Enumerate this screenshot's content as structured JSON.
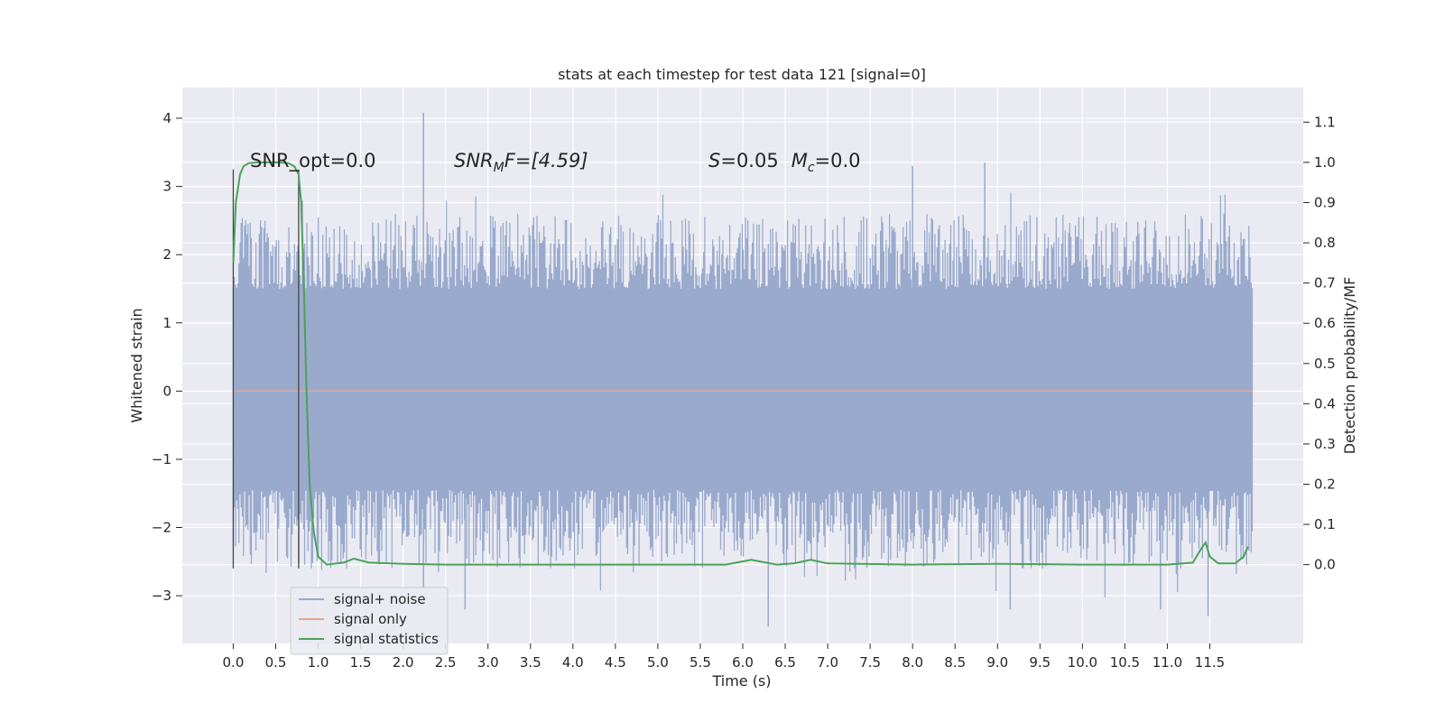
{
  "chart_data": {
    "type": "line",
    "title": "stats at each timestep for test data 121 [signal=0]",
    "xlabel": "Time (s)",
    "ylabel_left": "Whitened strain",
    "ylabel_right": "Detection probability/MF",
    "xlim": [
      -0.6,
      12.6
    ],
    "ylim_left": [
      -3.7,
      4.45
    ],
    "ylim_right": [
      -0.196,
      1.186
    ],
    "x_ticks": [
      "0.0",
      "0.5",
      "1.0",
      "1.5",
      "2.0",
      "2.5",
      "3.0",
      "3.5",
      "4.0",
      "4.5",
      "5.0",
      "5.5",
      "6.0",
      "6.5",
      "7.0",
      "7.5",
      "8.0",
      "8.5",
      "9.0",
      "9.5",
      "10.0",
      "10.5",
      "11.0",
      "11.5"
    ],
    "y_ticks_left": [
      "−3",
      "−2",
      "−1",
      "0",
      "1",
      "2",
      "3",
      "4"
    ],
    "y_ticks_right": [
      "0.0",
      "0.1",
      "0.2",
      "0.3",
      "0.4",
      "0.5",
      "0.6",
      "0.7",
      "0.8",
      "0.9",
      "1.0",
      "1.1"
    ],
    "grid": true,
    "legend_placement": "lower-left",
    "annotations": {
      "snr_opt": "SNR_opt=0.0",
      "snr_mf_pre": "SNR",
      "snr_mf_sub": "M",
      "snr_mf_post": "F=[4.59]",
      "s_pre": "S",
      "s_post": "=0.05",
      "mc_pre": "M",
      "mc_sub": "c",
      "mc_post": "=0.0"
    },
    "vlines_x": [
      0.0,
      0.77
    ],
    "series": [
      {
        "name": "signal+ noise",
        "color": "#9aaacd",
        "axis": "left",
        "x_range": [
          0.0,
          12.0
        ],
        "core_band": [
          -1.45,
          1.5
        ],
        "outer_band": [
          -2.6,
          2.6
        ],
        "notable_peaks": [
          [
            2.24,
            4.08
          ],
          [
            8.0,
            3.3
          ],
          [
            8.85,
            3.35
          ],
          [
            2.24,
            -2.9
          ],
          [
            6.3,
            -3.45
          ],
          [
            9.15,
            -3.2
          ],
          [
            11.48,
            -3.3
          ],
          [
            10.92,
            -3.2
          ],
          [
            2.73,
            -3.2
          ]
        ]
      },
      {
        "name": "signal only",
        "color": "#e2a893",
        "axis": "left",
        "x": [
          0.0,
          12.0
        ],
        "y": [
          0.0,
          0.0
        ]
      },
      {
        "name": "signal statistics",
        "color": "#4aa25a",
        "axis": "right",
        "x": [
          0.0,
          0.03,
          0.08,
          0.12,
          0.18,
          0.3,
          0.5,
          0.65,
          0.72,
          0.77,
          0.8,
          0.83,
          0.86,
          0.9,
          0.95,
          1.0,
          1.1,
          1.3,
          1.42,
          1.6,
          2.0,
          2.5,
          3.0,
          4.0,
          5.0,
          5.8,
          6.1,
          6.4,
          6.6,
          6.8,
          7.0,
          8.0,
          9.0,
          10.0,
          11.0,
          11.3,
          11.4,
          11.45,
          11.5,
          11.6,
          11.8,
          11.9,
          11.95
        ],
        "y": [
          0.75,
          0.9,
          0.97,
          0.99,
          0.998,
          1.0,
          1.0,
          0.998,
          0.99,
          0.97,
          0.9,
          0.7,
          0.45,
          0.2,
          0.08,
          0.02,
          0.0,
          0.005,
          0.015,
          0.005,
          0.002,
          0.0,
          0.0,
          0.0,
          0.0,
          0.0,
          0.012,
          0.0,
          0.003,
          0.012,
          0.003,
          0.0,
          0.002,
          0.0,
          0.0,
          0.005,
          0.04,
          0.055,
          0.02,
          0.003,
          0.003,
          0.02,
          0.045
        ]
      }
    ]
  }
}
